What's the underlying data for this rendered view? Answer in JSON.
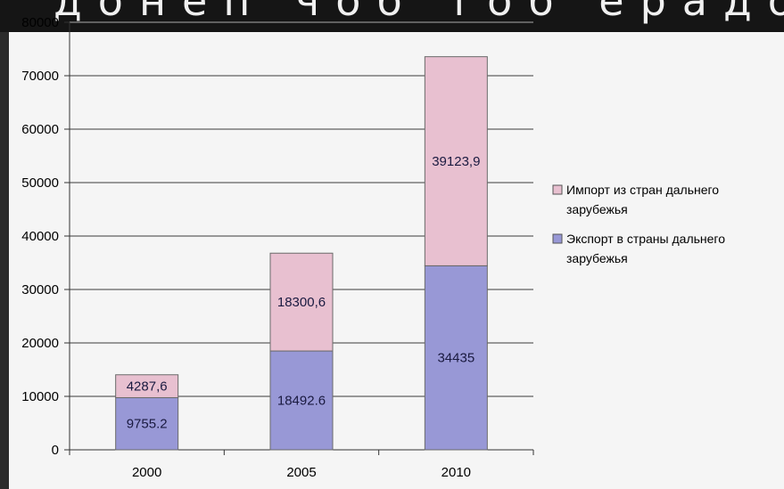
{
  "header_text": "донеп чоб тоб ерадоб",
  "colors": {
    "import": "#e8c0d0",
    "export": "#9898d6",
    "bar_stroke": "#6a6a6a",
    "grid": "#7a7a7a"
  },
  "chart_data": {
    "type": "bar",
    "stacked": true,
    "categories": [
      "2000",
      "2005",
      "2010"
    ],
    "series": [
      {
        "name": "Экспорт в страны дальнего зарубежья",
        "values": [
          9755.2,
          18492.6,
          34435
        ],
        "labels": [
          "9755.2",
          "18492.6",
          "34435"
        ],
        "color": "#9898d6"
      },
      {
        "name": "Импорт из стран дальнего зарубежья",
        "values": [
          4287.6,
          18300.6,
          39123.9
        ],
        "labels": [
          "4287,6",
          "18300,6",
          "39123,9"
        ],
        "color": "#e8c0d0"
      }
    ],
    "ylim": [
      0,
      80000
    ],
    "yticks": [
      "0",
      "10000",
      "20000",
      "30000",
      "40000",
      "50000",
      "60000",
      "70000",
      "80000"
    ],
    "grid": true,
    "legend_position": "right",
    "legend": [
      {
        "line1": "Импорт из стран дальнего",
        "line2": "зарубежья",
        "series": "import"
      },
      {
        "line1": "Экспорт в страны дальнего",
        "line2": "зарубежья",
        "series": "export"
      }
    ]
  }
}
